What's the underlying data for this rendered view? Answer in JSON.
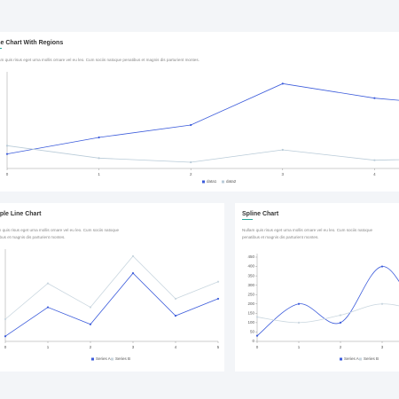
{
  "chart_data": [
    {
      "type": "line",
      "title": "Line Chart With Regions",
      "subtitle": "Nullam quis risus eget urna mollis ornare vel eu leo. Cum sociis natoque penatibus et magnis dis parturient montes.",
      "x": [
        0,
        1,
        2,
        3,
        4,
        5
      ],
      "xlim": [
        0,
        5
      ],
      "xticks": [
        0,
        1,
        2,
        3,
        4,
        5
      ],
      "ylim": [
        0,
        450
      ],
      "series": [
        {
          "name": "data1",
          "color": "#3b5bdb",
          "values": [
            70,
            150,
            210,
            410,
            340,
            300
          ]
        },
        {
          "name": "data2",
          "color": "#b9cbd8",
          "values": [
            110,
            50,
            30,
            90,
            40,
            50
          ]
        }
      ]
    },
    {
      "type": "line",
      "title": "Simple Line Chart",
      "subtitle": "Nullam quis risus eget urna mollis ornare vel eu leo. Cum sociis natoque penatibus et magnis dis parturient montes.",
      "x": [
        0,
        1,
        2,
        3,
        4,
        5
      ],
      "xlim": [
        0,
        5
      ],
      "xticks": [
        0,
        1,
        2,
        3,
        4,
        5
      ],
      "ylim": [
        0,
        520
      ],
      "series": [
        {
          "name": "Series A",
          "color": "#3b5bdb",
          "values": [
            30,
            200,
            100,
            400,
            150,
            250
          ]
        },
        {
          "name": "Series B",
          "color": "#c9d6df",
          "values": [
            130,
            340,
            200,
            500,
            250,
            350
          ]
        }
      ]
    },
    {
      "type": "spline",
      "title": "Spline Chart",
      "subtitle": "Nullam quis risus eget urna mollis ornare vel eu leo. Cum sociis natoque penatibus et magnis dis parturient montes.",
      "x": [
        0,
        1,
        2,
        3,
        4,
        5
      ],
      "xlim": [
        0,
        5
      ],
      "xticks": [
        0,
        1,
        2,
        3,
        4,
        5
      ],
      "ylim": [
        0,
        450
      ],
      "yticks": [
        0,
        50,
        100,
        150,
        200,
        250,
        300,
        350,
        400,
        450
      ],
      "series": [
        {
          "name": "Series A",
          "color": "#3b5bdb",
          "values": [
            30,
            200,
            100,
            400,
            150,
            250
          ]
        },
        {
          "name": "Series B",
          "color": "#c9d6df",
          "values": [
            130,
            100,
            140,
            200,
            150,
            50
          ]
        }
      ]
    }
  ]
}
